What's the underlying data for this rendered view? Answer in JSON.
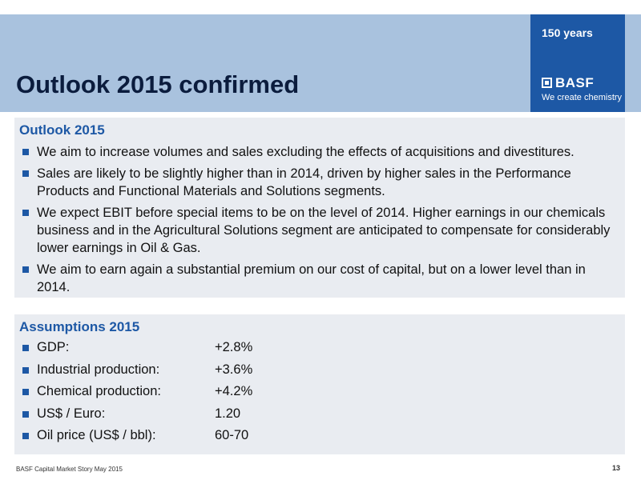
{
  "header": {
    "title": "Outlook 2015 confirmed",
    "badge": "150 years",
    "logo": "BASF",
    "tagline": "We create chemistry"
  },
  "outlook": {
    "heading": "Outlook 2015",
    "bullets": [
      "We aim to increase volumes and sales excluding the effects of acquisitions and divestitures.",
      "Sales are likely to be slightly higher than in 2014, driven by higher sales in the Performance Products and Functional Materials and Solutions segments.",
      "We expect EBIT before special items to be on the level of 2014. Higher earnings in our chemicals business and in the Agricultural Solutions segment are anticipated to compensate for considerably lower earnings in Oil & Gas.",
      "We aim to earn again a substantial premium on our cost of capital, but on a lower level than in 2014."
    ]
  },
  "assumptions": {
    "heading": "Assumptions 2015",
    "items": [
      {
        "label": "GDP:",
        "value": "+2.8%"
      },
      {
        "label": "Industrial production:",
        "value": "+3.6%"
      },
      {
        "label": "Chemical production:",
        "value": "+4.2%"
      },
      {
        "label": "US$ / Euro:",
        "value": "1.20"
      },
      {
        "label": "Oil price (US$ / bbl):",
        "value": "60-70"
      }
    ]
  },
  "footer": {
    "source": "BASF Capital Market Story May 2015",
    "page": "13"
  }
}
